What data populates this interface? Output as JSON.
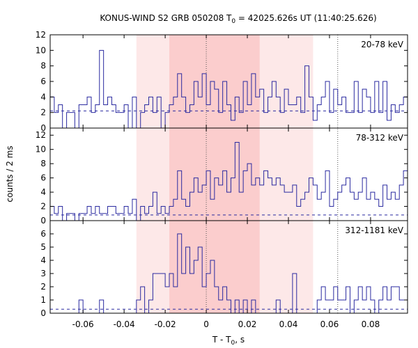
{
  "chart_data": {
    "type": "line",
    "title": "KONUS-WIND S2 GRB 050208 T",
    "title_sub": "0",
    "title_rest": " = 42025.626s UT (11:40:25.626)",
    "xlabel": "T - T",
    "xlabel_sub": "0",
    "xlabel_rest": ", s",
    "ylabel": "counts / 2 ms",
    "xlim": [
      -0.076,
      0.098
    ],
    "bin_width": 0.002,
    "x_ticks": [
      -0.06,
      -0.04,
      -0.02,
      0,
      0.02,
      0.04,
      0.06,
      0.08
    ],
    "x_tick_labels": [
      "-0.06",
      "-0.04",
      "-0.02",
      "0",
      "0.02",
      "0.04",
      "0.06",
      "0.08"
    ],
    "outer_interval": [
      -0.034,
      0.052
    ],
    "inner_interval": [
      -0.018,
      0.026
    ],
    "marker_lines": [
      0,
      0.064
    ],
    "panels": [
      {
        "name": "20-78 keV",
        "ylim": [
          0,
          12
        ],
        "y_ticks": [
          0,
          2,
          4,
          6,
          8,
          10,
          12
        ],
        "y_tick_labels": [
          "0",
          "2",
          "4",
          "6",
          "8",
          "10",
          "12"
        ],
        "background": 2.2,
        "start": -0.076,
        "counts": [
          4,
          2,
          3,
          0,
          2,
          2,
          0,
          3,
          3,
          4,
          2,
          3,
          10,
          3,
          4,
          3,
          2,
          2,
          3,
          0,
          4,
          0,
          2,
          3,
          4,
          2,
          4,
          0,
          2,
          3,
          4,
          7,
          4,
          2,
          3,
          6,
          4,
          7,
          3,
          6,
          5,
          2,
          6,
          3,
          1,
          4,
          2,
          6,
          3,
          7,
          4,
          5,
          2,
          4,
          6,
          4,
          2,
          5,
          3,
          3,
          4,
          2,
          8,
          4,
          1,
          3,
          4,
          6,
          2,
          5,
          3,
          4,
          2,
          2,
          6,
          2,
          5,
          4,
          2,
          6,
          2,
          6,
          1,
          3,
          2,
          3,
          4,
          5,
          3,
          5,
          3,
          1,
          3,
          2,
          4,
          2,
          3,
          2,
          3,
          2,
          2,
          4,
          2,
          3,
          4,
          2,
          4,
          4,
          2,
          5,
          2,
          4,
          2,
          5,
          6,
          2,
          3,
          2,
          3,
          3,
          4,
          3,
          3,
          6,
          4,
          3,
          5,
          2,
          2,
          2,
          3,
          3,
          7,
          2,
          2,
          7,
          3,
          4,
          5,
          3,
          8,
          4,
          2,
          7,
          4,
          3,
          2,
          4,
          2,
          8,
          2,
          3,
          5,
          3,
          3,
          3,
          3,
          4,
          5,
          2,
          3,
          3,
          5,
          2,
          3,
          5,
          3,
          4,
          4,
          3,
          1,
          3,
          3,
          2,
          5,
          4,
          3,
          3,
          2,
          3,
          2,
          2,
          3,
          2,
          2,
          2,
          3,
          2,
          4,
          3,
          4,
          2,
          2,
          3,
          5,
          3,
          2,
          3,
          4,
          2,
          7,
          4,
          5,
          2,
          6,
          3,
          5,
          3,
          2,
          4,
          4,
          4,
          2,
          4,
          3,
          2,
          3,
          2,
          2,
          3,
          3,
          4,
          2,
          2,
          3,
          3,
          4,
          5,
          3,
          2,
          4,
          3,
          2,
          3,
          5,
          2,
          3,
          3,
          3,
          8,
          3,
          6,
          2,
          2,
          3,
          3,
          4,
          1,
          2,
          3,
          2,
          4,
          8,
          6,
          3,
          4,
          2,
          3,
          2,
          3,
          3,
          4,
          3,
          2,
          3,
          5,
          3,
          1,
          2,
          2,
          3
        ]
      },
      {
        "name": "78-312 keV",
        "ylim": [
          0,
          13
        ],
        "y_ticks": [
          0,
          2,
          4,
          6,
          8,
          10,
          12
        ],
        "y_tick_labels": [
          "0",
          "2",
          "4",
          "6",
          "8",
          "10",
          "12"
        ],
        "background": 0.8,
        "start": -0.076,
        "counts": [
          2,
          1,
          2,
          0,
          1,
          1,
          0,
          1,
          1,
          2,
          1,
          2,
          1,
          1,
          2,
          2,
          1,
          1,
          2,
          1,
          3,
          0,
          2,
          1,
          2,
          4,
          1,
          2,
          1,
          2,
          3,
          7,
          3,
          2,
          4,
          6,
          4,
          5,
          7,
          3,
          6,
          5,
          7,
          4,
          6,
          11,
          4,
          7,
          8,
          5,
          6,
          5,
          7,
          6,
          5,
          6,
          5,
          4,
          4,
          5,
          2,
          3,
          4,
          6,
          5,
          3,
          4,
          7,
          2,
          3,
          4,
          5,
          6,
          4,
          3,
          4,
          6,
          3,
          4,
          3,
          2,
          5,
          3,
          4,
          3,
          5,
          7,
          5,
          3,
          4,
          2,
          3,
          3,
          4,
          3,
          2,
          4,
          3,
          2,
          3,
          5,
          2,
          3,
          3,
          4,
          3,
          3,
          5,
          3,
          4,
          2,
          3,
          4,
          2,
          3,
          3,
          4,
          5,
          2,
          4,
          3,
          2,
          3,
          2,
          2,
          3,
          3,
          4,
          2,
          3,
          3,
          4,
          2,
          3,
          3,
          2,
          2,
          3,
          3,
          2,
          4,
          3,
          2,
          2,
          1,
          2,
          3,
          2,
          1,
          2,
          3,
          2,
          3,
          4,
          3,
          2,
          2,
          1,
          2,
          3,
          2,
          3,
          4,
          3,
          3,
          2,
          2,
          3,
          3,
          2,
          4,
          2,
          3,
          3,
          3,
          2,
          3,
          4,
          4,
          2,
          3,
          2,
          3,
          3,
          5,
          2,
          2,
          3,
          2,
          3,
          3,
          2,
          2,
          4,
          3,
          2,
          1,
          2,
          2,
          2,
          1,
          2,
          2,
          1,
          3,
          2,
          2,
          1,
          2,
          2,
          1,
          2,
          1,
          1,
          3,
          2,
          2,
          2,
          2,
          1,
          2,
          1,
          1,
          2,
          3,
          2,
          2,
          1,
          2,
          2,
          1,
          1,
          2,
          2,
          1,
          2,
          1,
          1,
          2,
          1,
          1,
          1,
          1,
          2,
          2,
          1,
          1,
          2,
          2,
          1,
          1,
          2,
          1,
          1,
          2,
          1,
          2,
          1,
          1,
          2,
          1
        ]
      },
      {
        "name": "312-1181 keV",
        "ylim": [
          0,
          7
        ],
        "y_ticks": [
          0,
          1,
          2,
          3,
          4,
          5,
          6
        ],
        "y_tick_labels": [
          "0",
          "1",
          "2",
          "3",
          "4",
          "5",
          "6"
        ],
        "background": 0.3,
        "start": -0.076,
        "counts": [
          0,
          0,
          0,
          0,
          0,
          0,
          0,
          1,
          0,
          0,
          0,
          0,
          1,
          0,
          0,
          0,
          0,
          0,
          0,
          0,
          0,
          1,
          2,
          0,
          1,
          3,
          3,
          3,
          2,
          3,
          2,
          6,
          3,
          5,
          3,
          4,
          5,
          2,
          3,
          4,
          2,
          1,
          2,
          1,
          0,
          1,
          0,
          1,
          0,
          1,
          0,
          0,
          0,
          0,
          0,
          1,
          0,
          0,
          0,
          3,
          0,
          0,
          0,
          0,
          0,
          1,
          2,
          1,
          1,
          2,
          1,
          1,
          2,
          0,
          1,
          2,
          1,
          2,
          1,
          0,
          1,
          2,
          1,
          2,
          2,
          1,
          1,
          0,
          1,
          0,
          1,
          0,
          1,
          0,
          0,
          0,
          0,
          1,
          0,
          0,
          0,
          0,
          1,
          0,
          0,
          0,
          0,
          1,
          0,
          0,
          0,
          0,
          0,
          1,
          0,
          0,
          0,
          0,
          0,
          0,
          0,
          0,
          0,
          0,
          0,
          0,
          0,
          0,
          0,
          0,
          0,
          0,
          0,
          0,
          0,
          0,
          0,
          0,
          0,
          0,
          0,
          0,
          0,
          0,
          0,
          0,
          0,
          0,
          0,
          0,
          0,
          0,
          0,
          0,
          0,
          0,
          0,
          0,
          0,
          0,
          0,
          0,
          0,
          0,
          0,
          0,
          0,
          0,
          0,
          0,
          0,
          0,
          0,
          0,
          0,
          0,
          0,
          0,
          0,
          0,
          0,
          0,
          0,
          0,
          0,
          0,
          0,
          0,
          0,
          0,
          0,
          0,
          0,
          0,
          0,
          0,
          0,
          0,
          0,
          0,
          0,
          0,
          0,
          0,
          0,
          0,
          0,
          0,
          0,
          0,
          0,
          0,
          0,
          0,
          0,
          0,
          0,
          0,
          0,
          0,
          0,
          0,
          0,
          0,
          0,
          0,
          0,
          0,
          0,
          0,
          0,
          0,
          0,
          0,
          0,
          0,
          0,
          0,
          0,
          0,
          0,
          0,
          0,
          0,
          0,
          0,
          0,
          0,
          0,
          0,
          0,
          0,
          0,
          0,
          0,
          0,
          0,
          0,
          0,
          0,
          0,
          0,
          0,
          0,
          0,
          0,
          0,
          0,
          0,
          0,
          0,
          0,
          0,
          0,
          0,
          0,
          0,
          0
        ]
      }
    ]
  },
  "colors": {
    "histogram": "#2a2aa0",
    "background_line": "#2a2aa0",
    "outer_interval": "#fde8e8",
    "inner_interval": "#fbcdcd",
    "marker_line": "#555555",
    "frame": "#000000"
  }
}
